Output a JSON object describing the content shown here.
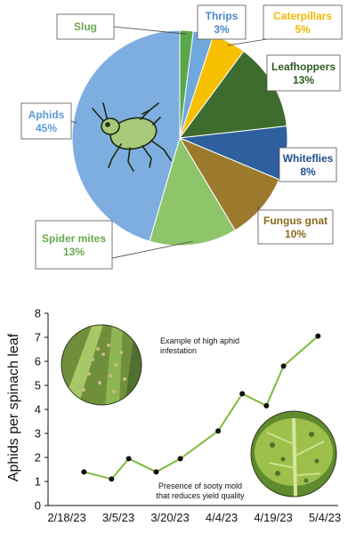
{
  "chart_data": [
    {
      "type": "pie",
      "slices": [
        {
          "label": "Slug",
          "value": 2,
          "value_label": "",
          "color": "#5aa84a",
          "text_color": "#6aa84f"
        },
        {
          "label": "Thrips",
          "value": 3,
          "value_label": "3%",
          "color": "#6fa8dc",
          "text_color": "#4a86c8"
        },
        {
          "label": "Caterpillars",
          "value": 5,
          "value_label": "5%",
          "color": "#f6c000",
          "text_color": "#f2b600"
        },
        {
          "label": "Leafhoppers",
          "value": 13,
          "value_label": "13%",
          "color": "#3e6b2e",
          "text_color": "#2e5a23"
        },
        {
          "label": "Whiteflies",
          "value": 8,
          "value_label": "8%",
          "color": "#2e5f9e",
          "text_color": "#1f4e8f"
        },
        {
          "label": "Fungus gnat",
          "value": 10,
          "value_label": "10%",
          "color": "#9b7a2d",
          "text_color": "#8a6a1e"
        },
        {
          "label": "Spider mites",
          "value": 13,
          "value_label": "13%",
          "color": "#8ec46a",
          "text_color": "#6aa84f"
        },
        {
          "label": "Aphids",
          "value": 45,
          "value_label": "45%",
          "color": "#7eaee0",
          "text_color": "#5b9bd5"
        }
      ]
    },
    {
      "type": "line",
      "ylabel": "Aphids per spinach leaf",
      "xlabel": "",
      "ylim": [
        0,
        8
      ],
      "yticks": [
        "0",
        "1",
        "2",
        "3",
        "4",
        "5",
        "6",
        "7",
        "8"
      ],
      "xticks": [
        "2/18/23",
        "3/5/23",
        "3/20/23",
        "4/4/23",
        "4/19/23",
        "5/4/23"
      ],
      "x": [
        "2/23/23",
        "3/3/23",
        "3/8/23",
        "3/16/23",
        "3/23/23",
        "4/3/23",
        "4/10/23",
        "4/17/23",
        "4/22/23",
        "5/2/23"
      ],
      "series": [
        {
          "values": [
            1.4,
            1.1,
            1.95,
            1.4,
            1.95,
            3.1,
            4.65,
            4.15,
            5.8,
            7.05
          ]
        }
      ],
      "line_color": "#7dbb3c",
      "annotations": [
        {
          "text_lines": [
            "Example of high aphid",
            "infestation"
          ]
        },
        {
          "text_lines": [
            "Presence of sooty mold",
            "that reduces yield quality"
          ]
        }
      ]
    }
  ]
}
